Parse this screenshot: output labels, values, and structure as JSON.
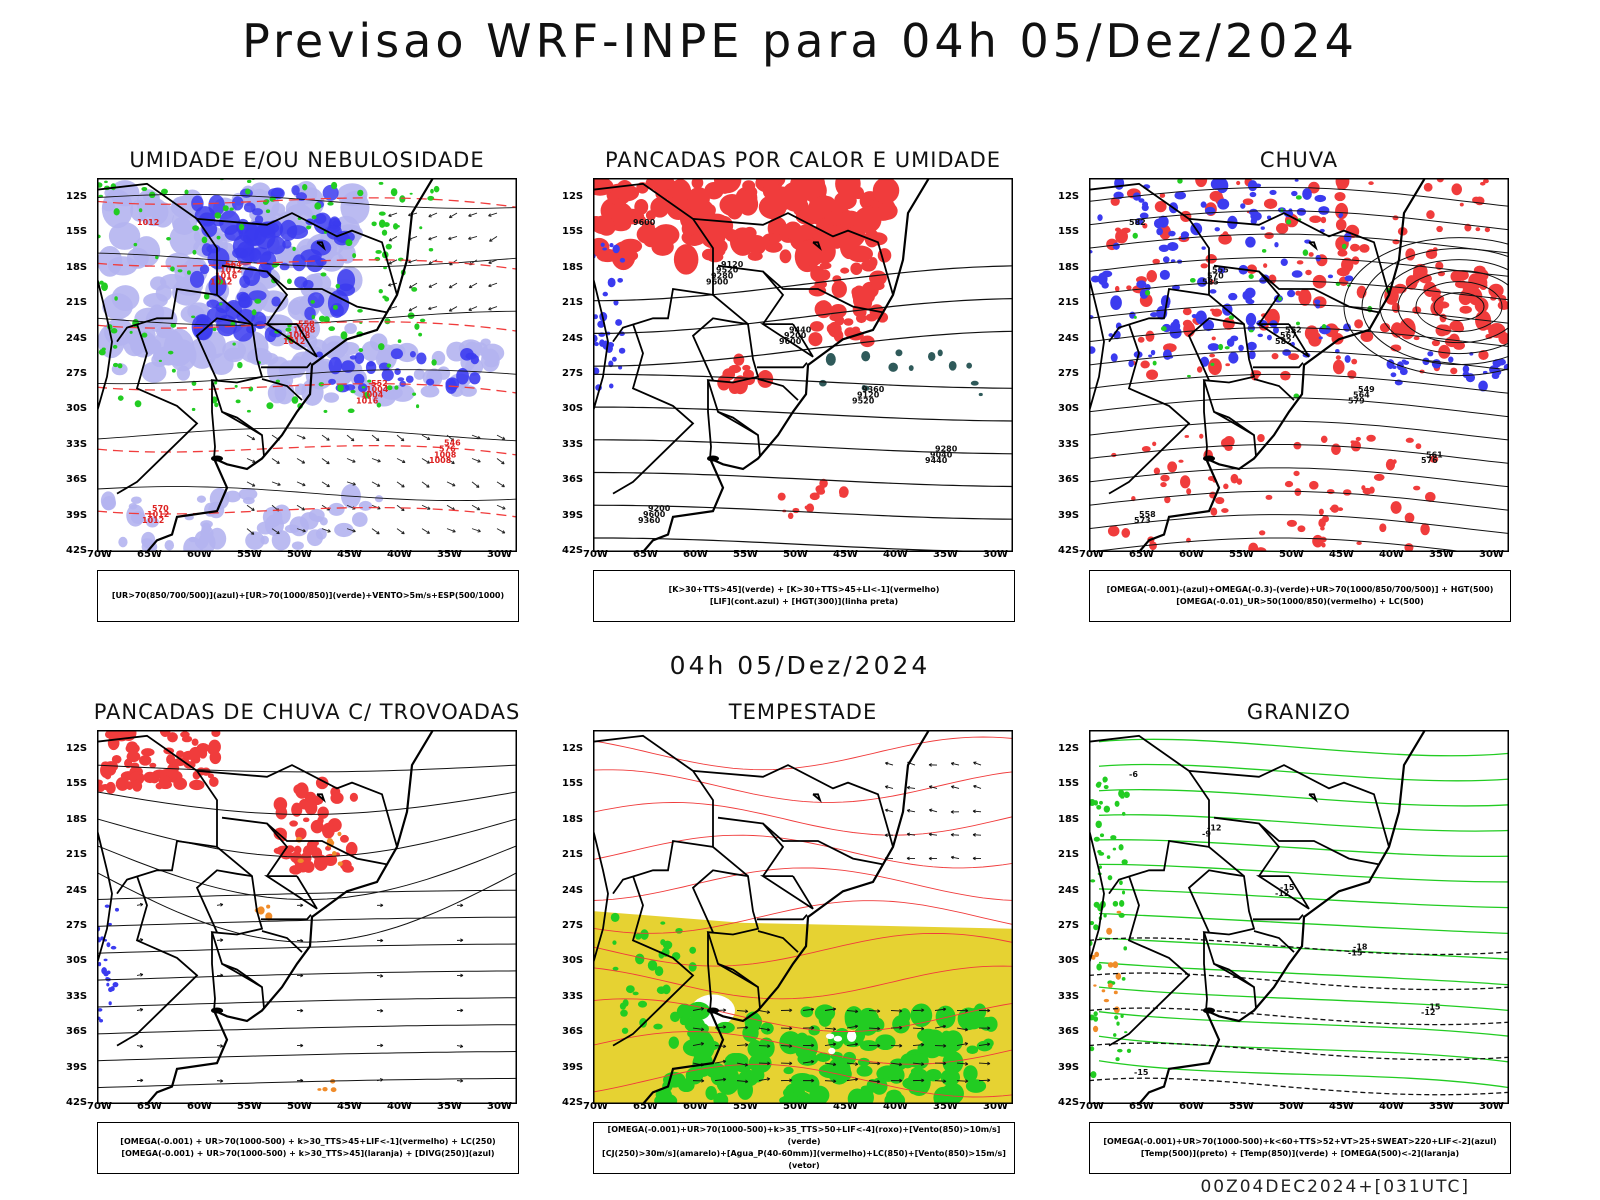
{
  "title": "Previsao WRF-INPE  para 04h 05/Dez/2024",
  "subtitle": "04h 05/Dez/2024",
  "footer": "00Z04DEC2024+[031UTC]",
  "axes": {
    "lat_labels": [
      "12S",
      "15S",
      "18S",
      "21S",
      "24S",
      "27S",
      "30S",
      "33S",
      "36S",
      "39S",
      "42S"
    ],
    "lon_labels": [
      "70W",
      "65W",
      "60W",
      "55W",
      "50W",
      "45W",
      "40W",
      "35W",
      "30W"
    ]
  },
  "colors": {
    "blue": "#3b3bef",
    "lightblue": "#b4b4f0",
    "green": "#22cc22",
    "red": "#f03c3c",
    "orange": "#f08c2a",
    "yellow": "#e6d232",
    "darkteal": "#2f5a5a"
  },
  "panels": [
    {
      "title": "UMIDADE E/OU NEBULOSIDADE",
      "legend": [
        "[UR>70(850/700/500)](azul)+[UR>70(1000/850)](verde)+VENTO>5m/s+ESP(500/1000)"
      ],
      "contour_labels": [
        "1012",
        "1012",
        "1012",
        "1016",
        "1008",
        "1012",
        "1016",
        "1008",
        "1004",
        "1008",
        "1012",
        "1012",
        "1008",
        "1004",
        "576",
        "570",
        "564",
        "558",
        "552",
        "546"
      ]
    },
    {
      "title": "PANCADAS POR CALOR E UMIDADE",
      "legend": [
        "[K>30+TTS>45](verde)  +  [K>30+TTS>45+LI<-1](vermelho)",
        "[LIF](cont.azul)  +  [HGT(300)](linha preta)"
      ],
      "contour_labels": [
        "9600",
        "9600",
        "9600",
        "9520",
        "9440",
        "9360",
        "9280",
        "9200",
        "9120",
        "9040",
        "9600",
        "9520",
        "9440",
        "9360",
        "9280",
        "9200",
        "9120"
      ]
    },
    {
      "title": "CHUVA",
      "legend": [
        "[OMEGA(-0.001)-(azul)+OMEGA(-0.3)-(verde)+UR>70(1000/850/700/500)]  +  HGT(500)",
        "[OMEGA(-0.01)_UR>50(1000/850)(vermelho)  +  LC(500)"
      ],
      "contour_labels": [
        "582",
        "585",
        "582",
        "579",
        "576",
        "573",
        "570",
        "567",
        "564",
        "561",
        "558",
        "555",
        "552",
        "549"
      ]
    },
    {
      "title": "PANCADAS DE CHUVA C/ TROVOADAS",
      "legend": [
        "[OMEGA(-0.001)  +  UR>70(1000-500)  +  k>30_TTS>45+LIF<-1](vermelho)  +  LC(250)",
        "[OMEGA(-0.001)  +  UR>70(1000-500)  +  k>30_TTS>45](laranja)  +  [DIVG(250)](azul)"
      ],
      "contour_labels": []
    },
    {
      "title": "TEMPESTADE",
      "legend": [
        "[OMEGA(-0.001)+UR>70(1000-500)+k>35_TTS>50+LIF<-4](roxo)+[Vento(850)>10m/s](verde)",
        "[CJ(250)>30m/s](amarelo)+[Agua_P(40-60mm)](vermelho)+LC(850)+[Vento(850)>15m/s](vetor)"
      ],
      "contour_labels": []
    },
    {
      "title": "GRANIZO",
      "legend": [
        "[OMEGA(-0.001)+UR>70(1000-500)+k<60+TTS>52+VT>25+SWEAT>220+LIF<-2](azul)",
        "[Temp(500)](preto)  +  [Temp(850)](verde)  +  [OMEGA(500)<-2](laranja)"
      ],
      "contour_labels": [
        "-6",
        "-9",
        "-12",
        "-15",
        "-12",
        "-15",
        "-12",
        "-15",
        "-18",
        "-15"
      ]
    }
  ]
}
